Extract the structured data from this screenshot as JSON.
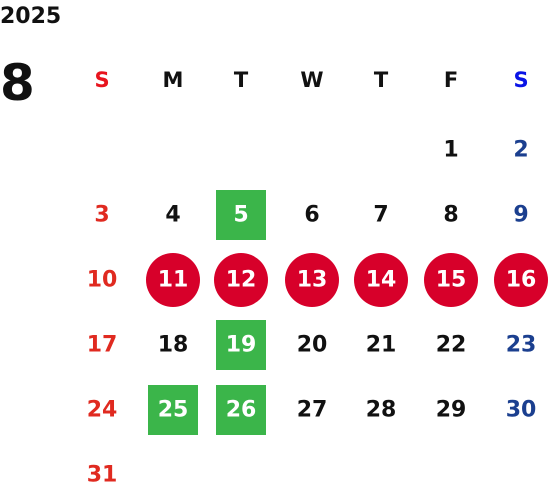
{
  "year": "2025",
  "month": "8",
  "weekdays": [
    "S",
    "M",
    "T",
    "W",
    "T",
    "F",
    "S"
  ],
  "weeks": [
    [
      null,
      null,
      null,
      null,
      null,
      1,
      2
    ],
    [
      3,
      4,
      {
        "day": 5,
        "mark": "square"
      },
      6,
      7,
      8,
      9
    ],
    [
      10,
      {
        "day": 11,
        "mark": "circle"
      },
      {
        "day": 12,
        "mark": "circle"
      },
      {
        "day": 13,
        "mark": "circle"
      },
      {
        "day": 14,
        "mark": "circle"
      },
      {
        "day": 15,
        "mark": "circle"
      },
      {
        "day": 16,
        "mark": "circle"
      }
    ],
    [
      17,
      18,
      {
        "day": 19,
        "mark": "square"
      },
      20,
      21,
      22,
      23
    ],
    [
      24,
      {
        "day": 25,
        "mark": "square"
      },
      {
        "day": 26,
        "mark": "square"
      },
      27,
      28,
      29,
      30
    ],
    [
      31,
      null,
      null,
      null,
      null,
      null,
      null
    ]
  ]
}
